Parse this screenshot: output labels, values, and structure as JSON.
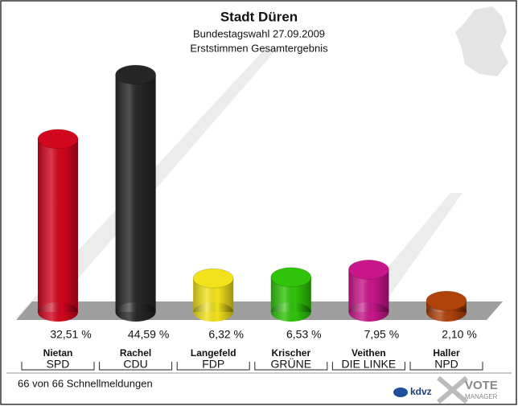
{
  "chart_data": {
    "type": "bar",
    "title": "Stadt Düren",
    "subtitle": [
      "Bundestagswahl 27.09.2009",
      "Erststimmen Gesamtergebnis"
    ],
    "candidates": [
      "Nietan",
      "Rachel",
      "Langefeld",
      "Krischer",
      "Veithen",
      "Haller"
    ],
    "categories": [
      "SPD",
      "CDU",
      "FDP",
      "GRÜNE",
      "DIE LINKE",
      "NPD"
    ],
    "values": [
      32.51,
      44.59,
      6.32,
      6.53,
      7.95,
      2.1
    ],
    "value_labels": [
      "32,51 %",
      "44,59 %",
      "6,32 %",
      "6,53 %",
      "7,95 %",
      "2,10 %"
    ],
    "colors": [
      "#d2061e",
      "#262626",
      "#f2e21c",
      "#2fc40a",
      "#c8168a",
      "#b0420c"
    ],
    "footer": "66 von 66 Schnellmeldungen",
    "logos": [
      "kdvz",
      "VOTE",
      "MANAGER"
    ]
  }
}
